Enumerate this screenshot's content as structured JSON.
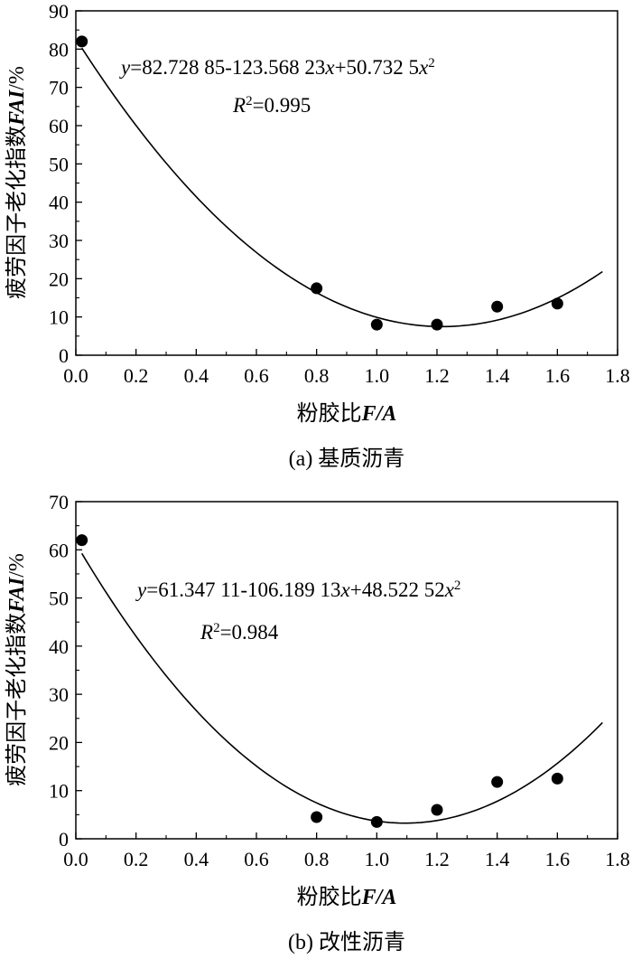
{
  "chart_data": [
    {
      "type": "scatter",
      "xlabel": "粉胶比F/A",
      "ylabel": "疲劳因子老化指数FAI/%",
      "xlim": [
        0,
        1.8
      ],
      "ylim": [
        0,
        90
      ],
      "x_ticks": [
        "0.0",
        "0.2",
        "0.4",
        "0.6",
        "0.8",
        "1.0",
        "1.2",
        "1.4",
        "1.6",
        "1.8"
      ],
      "y_ticks": [
        "0",
        "10",
        "20",
        "30",
        "40",
        "50",
        "60",
        "70",
        "80",
        "90"
      ],
      "points": [
        {
          "x": 0.02,
          "y": 82
        },
        {
          "x": 0.8,
          "y": 17.5
        },
        {
          "x": 1.0,
          "y": 8
        },
        {
          "x": 1.2,
          "y": 8
        },
        {
          "x": 1.4,
          "y": 12.7
        },
        {
          "x": 1.6,
          "y": 13.5
        }
      ],
      "fit": {
        "c0": 82.72885,
        "c1": -123.56823,
        "c2": 50.7325,
        "x_range": [
          0.02,
          1.75
        ]
      },
      "equation": "y=82.728 85-123.568 23x+50.732 5x2",
      "r2": "R2=0.995",
      "caption": "(a) 基质沥青"
    },
    {
      "type": "scatter",
      "xlabel": "粉胶比F/A",
      "ylabel": "疲劳因子老化指数FAI/%",
      "xlim": [
        0,
        1.8
      ],
      "ylim": [
        0,
        70
      ],
      "x_ticks": [
        "0.0",
        "0.2",
        "0.4",
        "0.6",
        "0.8",
        "1.0",
        "1.2",
        "1.4",
        "1.6",
        "1.8"
      ],
      "y_ticks": [
        "0",
        "10",
        "20",
        "30",
        "40",
        "50",
        "60",
        "70"
      ],
      "points": [
        {
          "x": 0.02,
          "y": 62
        },
        {
          "x": 0.8,
          "y": 4.5
        },
        {
          "x": 1.0,
          "y": 3.5
        },
        {
          "x": 1.2,
          "y": 6
        },
        {
          "x": 1.4,
          "y": 11.8
        },
        {
          "x": 1.6,
          "y": 12.5
        }
      ],
      "fit": {
        "c0": 61.34711,
        "c1": -106.18913,
        "c2": 48.52252,
        "x_range": [
          0.02,
          1.75
        ]
      },
      "equation": "y=61.347 11-106.189 13x+48.522 52x2",
      "r2": "R2=0.984",
      "caption": "(b) 改性沥青"
    }
  ]
}
